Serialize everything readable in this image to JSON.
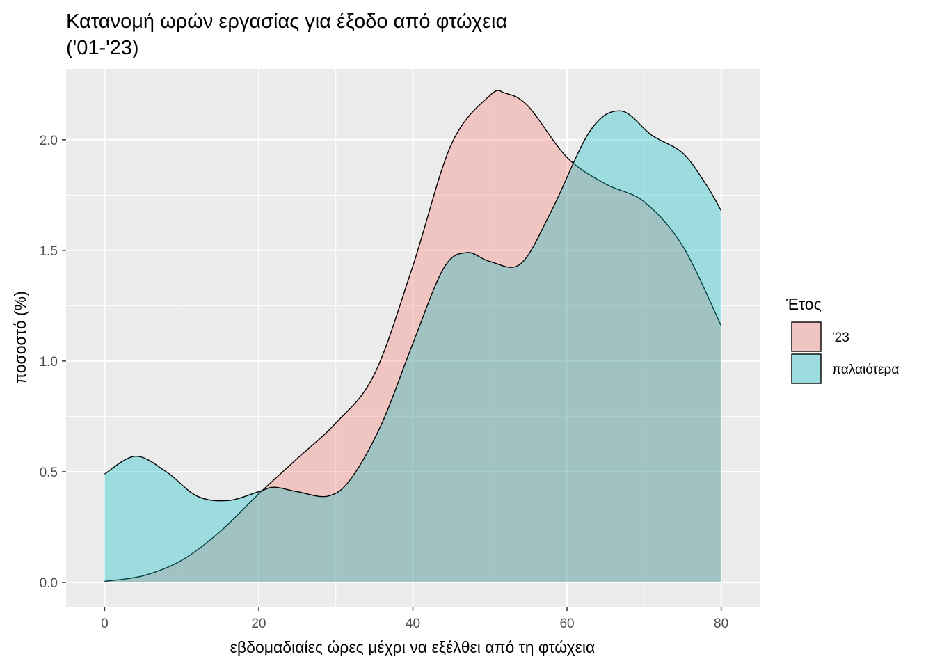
{
  "chart_data": {
    "type": "area",
    "title": [
      "Κατανομή ωρών εργασίας για έξοδο από φτώχεια",
      "('01-'23)"
    ],
    "xlabel": "εβδομαδιαίες ώρες μέχρι να εξέλθει από τη φτώχεια",
    "ylabel": "ποσοστό (%)",
    "xlim": [
      -5,
      85
    ],
    "ylim": [
      -0.11,
      2.32
    ],
    "x_ticks": [
      0,
      20,
      40,
      60,
      80
    ],
    "x_tick_labels": [
      "0",
      "20",
      "40",
      "60",
      "80"
    ],
    "y_ticks": [
      0,
      0.5,
      1,
      1.5,
      2
    ],
    "y_tick_labels": [
      "0.0",
      "0.5",
      "1.0",
      "1.5",
      "2.0"
    ],
    "grid": true,
    "legend": {
      "title": "Έτος",
      "position": "right"
    },
    "series": [
      {
        "name": "'23",
        "color": "#F8766D",
        "x": [
          0,
          5,
          10,
          15,
          20,
          25,
          30,
          35,
          40,
          45,
          50,
          52,
          55,
          60,
          65,
          70,
          75,
          80
        ],
        "values": [
          0.005,
          0.03,
          0.1,
          0.23,
          0.4,
          0.56,
          0.72,
          0.94,
          1.43,
          1.98,
          2.2,
          2.21,
          2.15,
          1.92,
          1.8,
          1.72,
          1.52,
          1.16
        ]
      },
      {
        "name": "παλαιότερα",
        "color": "#00BFC4",
        "x": [
          0,
          4,
          8,
          12,
          16,
          20,
          22,
          25,
          29,
          32,
          36,
          40,
          44,
          47,
          50,
          54,
          58,
          63,
          67,
          71,
          75,
          78,
          80
        ],
        "values": [
          0.49,
          0.57,
          0.5,
          0.39,
          0.37,
          0.41,
          0.43,
          0.41,
          0.39,
          0.47,
          0.72,
          1.08,
          1.42,
          1.49,
          1.45,
          1.44,
          1.68,
          2.04,
          2.13,
          2.02,
          1.94,
          1.8,
          1.68
        ]
      }
    ]
  }
}
